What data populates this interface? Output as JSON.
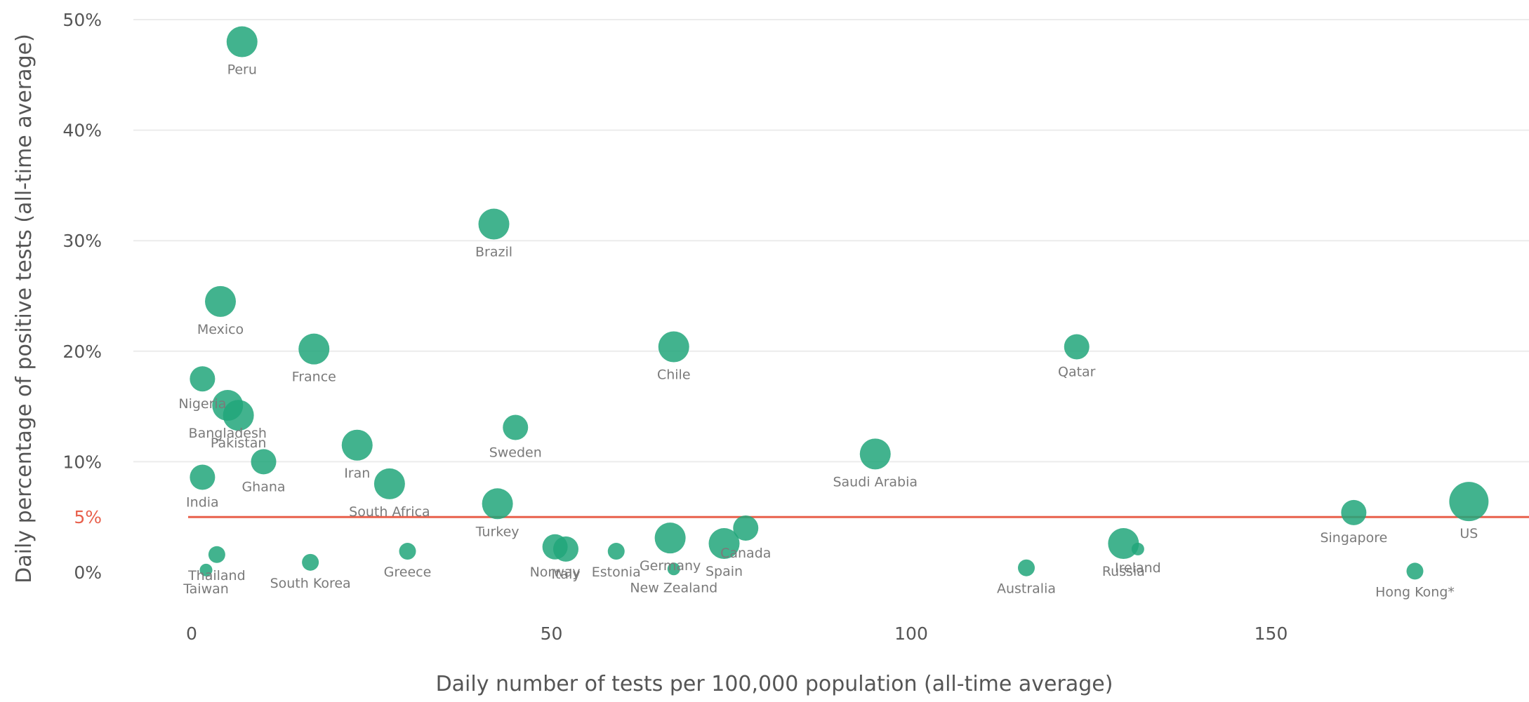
{
  "chart_data": {
    "type": "scatter",
    "xlabel": "Daily number of tests per 100,000 population (all-time average)",
    "ylabel": "Daily percentage of positive tests (all-time average)",
    "xlim": [
      0,
      185
    ],
    "ylim": [
      0,
      50
    ],
    "x_ticks": [
      {
        "value": 0,
        "label": "0"
      },
      {
        "value": 50,
        "label": "50"
      },
      {
        "value": 100,
        "label": "100"
      },
      {
        "value": 150,
        "label": "150"
      }
    ],
    "y_ticks": [
      {
        "value": 0,
        "label": "0%"
      },
      {
        "value": 10,
        "label": "10%"
      },
      {
        "value": 20,
        "label": "20%"
      },
      {
        "value": 30,
        "label": "30%"
      },
      {
        "value": 40,
        "label": "40%"
      },
      {
        "value": 50,
        "label": "50%"
      }
    ],
    "reference_line": {
      "value": 5,
      "label": "5%"
    },
    "grid": true,
    "colors": {
      "bubble": "#21a67a",
      "reference": "#e8604c",
      "grid": "#ececec",
      "text": "#555555"
    },
    "points": [
      {
        "label": "Peru",
        "x": 7,
        "y": 48,
        "size": "large"
      },
      {
        "label": "Brazil",
        "x": 42,
        "y": 31.5,
        "size": "large"
      },
      {
        "label": "Mexico",
        "x": 4,
        "y": 24.5,
        "size": "large"
      },
      {
        "label": "France",
        "x": 17,
        "y": 20.2,
        "size": "large"
      },
      {
        "label": "Chile",
        "x": 67,
        "y": 20.4,
        "size": "large"
      },
      {
        "label": "Qatar",
        "x": 123,
        "y": 20.4,
        "size": "medium"
      },
      {
        "label": "Nigeria",
        "x": 1.5,
        "y": 17.5,
        "size": "medium"
      },
      {
        "label": "Bangladesh",
        "x": 5,
        "y": 15.1,
        "size": "large"
      },
      {
        "label": "Pakistan",
        "x": 6.5,
        "y": 14.2,
        "size": "large"
      },
      {
        "label": "Sweden",
        "x": 45,
        "y": 13.1,
        "size": "medium"
      },
      {
        "label": "Iran",
        "x": 23,
        "y": 11.5,
        "size": "large"
      },
      {
        "label": "Saudi Arabia",
        "x": 95,
        "y": 10.7,
        "size": "large"
      },
      {
        "label": "Ghana",
        "x": 10,
        "y": 10,
        "size": "medium"
      },
      {
        "label": "India",
        "x": 1.5,
        "y": 8.6,
        "size": "medium"
      },
      {
        "label": "South Africa",
        "x": 27.5,
        "y": 8,
        "size": "large"
      },
      {
        "label": "Turkey",
        "x": 42.5,
        "y": 6.2,
        "size": "large"
      },
      {
        "label": "US",
        "x": 177.5,
        "y": 6.4,
        "size": "xlarge"
      },
      {
        "label": "Singapore",
        "x": 161.5,
        "y": 5.4,
        "size": "medium"
      },
      {
        "label": "Canada",
        "x": 77,
        "y": 4,
        "size": "medium"
      },
      {
        "label": "Germany",
        "x": 66.5,
        "y": 3.1,
        "size": "large"
      },
      {
        "label": "Spain",
        "x": 74,
        "y": 2.6,
        "size": "large"
      },
      {
        "label": "Norway",
        "x": 50.5,
        "y": 2.3,
        "size": "medium"
      },
      {
        "label": "Italy",
        "x": 52,
        "y": 2.1,
        "size": "medium"
      },
      {
        "label": "Estonia",
        "x": 59,
        "y": 1.9,
        "size": "small"
      },
      {
        "label": "Greece",
        "x": 30,
        "y": 1.9,
        "size": "small"
      },
      {
        "label": "Thailand",
        "x": 3.5,
        "y": 1.6,
        "size": "small"
      },
      {
        "label": "South Korea",
        "x": 16.5,
        "y": 0.9,
        "size": "small"
      },
      {
        "label": "Taiwan",
        "x": 2,
        "y": 0.2,
        "size": "tiny"
      },
      {
        "label": "New Zealand",
        "x": 67,
        "y": 0.3,
        "size": "tiny"
      },
      {
        "label": "Russia",
        "x": 129.5,
        "y": 2.6,
        "size": "large"
      },
      {
        "label": "Ireland",
        "x": 131.5,
        "y": 2.1,
        "size": "tiny"
      },
      {
        "label": "Australia",
        "x": 116,
        "y": 0.4,
        "size": "small"
      },
      {
        "label": "Hong Kong*",
        "x": 170,
        "y": 0.1,
        "size": "small"
      }
    ]
  }
}
